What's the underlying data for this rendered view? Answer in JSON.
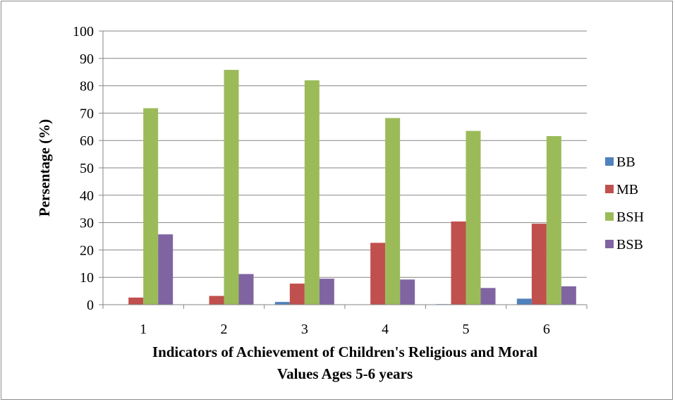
{
  "chart_data": {
    "type": "bar",
    "categories": [
      "1",
      "2",
      "3",
      "4",
      "5",
      "6"
    ],
    "series": [
      {
        "name": "BB",
        "color": "#4f81bd",
        "values": [
          0,
          0,
          1.0,
          0,
          0.2,
          2.2
        ]
      },
      {
        "name": "MB",
        "color": "#c0504d",
        "values": [
          2.6,
          3.2,
          7.7,
          22.6,
          30.4,
          29.6
        ]
      },
      {
        "name": "BSH",
        "color": "#9bbb59",
        "values": [
          71.8,
          85.8,
          82.0,
          68.2,
          63.5,
          61.6
        ]
      },
      {
        "name": "BSB",
        "color": "#8064a2",
        "values": [
          25.7,
          11.2,
          9.5,
          9.2,
          6.1,
          6.7
        ]
      }
    ],
    "ylim": [
      0,
      100
    ],
    "yticks": [
      0,
      10,
      20,
      30,
      40,
      50,
      60,
      70,
      80,
      90,
      100
    ],
    "ylabel": "Persentage (%)",
    "xlabel_lines": [
      "Indicators of Achievement of Children's Religious and Moral",
      "Values Ages 5-6 years"
    ],
    "grid": true,
    "legend_position": "right"
  }
}
